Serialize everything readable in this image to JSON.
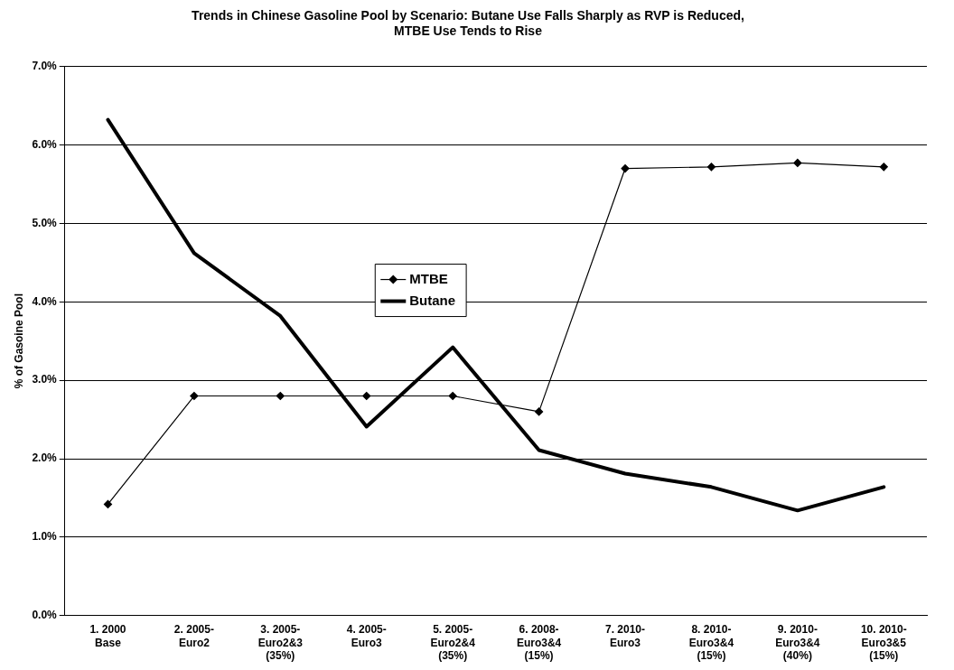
{
  "chart_data": {
    "type": "line",
    "title": "Trends in Chinese Gasoline Pool by Scenario: Butane Use Falls Sharply as RVP is Reduced,\nMTBE Use Tends to Rise",
    "ylabel": "% of Gasoine Pool",
    "categories": [
      "1. 2000\nBase",
      "2. 2005-\nEuro2",
      "3. 2005-\nEuro2&3\n(35%)",
      "4. 2005-\nEuro3",
      "5. 2005-\nEuro2&4\n(35%)",
      "6. 2008-\nEuro3&4\n(15%)",
      "7. 2010-\nEuro3",
      "8. 2010-\nEuro3&4\n(15%)",
      "9. 2010-\nEuro3&4\n(40%)",
      "10. 2010-\nEuro3&5\n(15%)"
    ],
    "series": [
      {
        "name": "MTBE",
        "color": "#000000",
        "marker": "diamond",
        "values": [
          1.42,
          2.8,
          2.8,
          2.8,
          2.8,
          2.6,
          5.7,
          5.72,
          5.77,
          5.72
        ]
      },
      {
        "name": "Butane",
        "color": "#000000",
        "marker": "none",
        "values": [
          6.32,
          4.62,
          3.82,
          2.41,
          3.42,
          2.11,
          1.81,
          1.64,
          1.34,
          1.64
        ]
      }
    ],
    "ylim": [
      0,
      7
    ],
    "yticks": [
      {
        "value": 0,
        "label": "0.0%"
      },
      {
        "value": 1,
        "label": "1.0%"
      },
      {
        "value": 2,
        "label": "2.0%"
      },
      {
        "value": 3,
        "label": "3.0%"
      },
      {
        "value": 4,
        "label": "4.0%"
      },
      {
        "value": 5,
        "label": "5.0%"
      },
      {
        "value": 6,
        "label": "6.0%"
      },
      {
        "value": 7,
        "label": "7.0%"
      }
    ],
    "grid": "y",
    "legend": "center"
  }
}
